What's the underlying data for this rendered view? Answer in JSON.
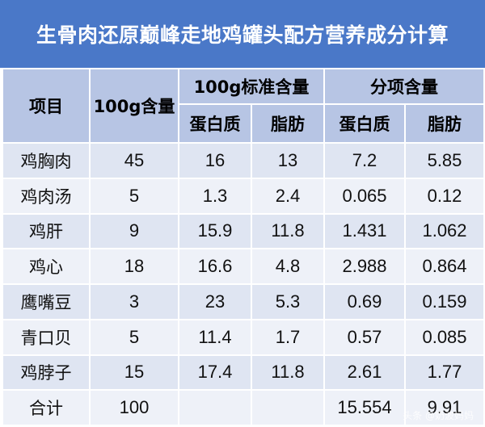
{
  "title": "生骨肉还原巅峰走地鸡罐头配方营养成分计算",
  "header": {
    "item": "项目",
    "amount": "100g含量",
    "standard_group": "100g标准含量",
    "portion_group": "分项含量",
    "protein": "蛋白质",
    "fat": "脂肪"
  },
  "rows": [
    {
      "name": "鸡胸肉",
      "amount": "45",
      "std_protein": "16",
      "std_fat": "13",
      "part_protein": "7.2",
      "part_fat": "5.85"
    },
    {
      "name": "鸡肉汤",
      "amount": "5",
      "std_protein": "1.3",
      "std_fat": "2.4",
      "part_protein": "0.065",
      "part_fat": "0.12"
    },
    {
      "name": "鸡肝",
      "amount": "9",
      "std_protein": "15.9",
      "std_fat": "11.8",
      "part_protein": "1.431",
      "part_fat": "1.062"
    },
    {
      "name": "鸡心",
      "amount": "18",
      "std_protein": "16.6",
      "std_fat": "4.8",
      "part_protein": "2.988",
      "part_fat": "0.864"
    },
    {
      "name": "鹰嘴豆",
      "amount": "3",
      "std_protein": "23",
      "std_fat": "5.3",
      "part_protein": "0.69",
      "part_fat": "0.159"
    },
    {
      "name": "青口贝",
      "amount": "5",
      "std_protein": "11.4",
      "std_fat": "1.7",
      "part_protein": "0.57",
      "part_fat": "0.085"
    },
    {
      "name": "鸡脖子",
      "amount": "15",
      "std_protein": "17.4",
      "std_fat": "11.8",
      "part_protein": "2.61",
      "part_fat": "1.77"
    }
  ],
  "total": {
    "label": "合计",
    "amount": "100",
    "part_protein": "15.554",
    "part_fat": "9.91"
  },
  "watermark": "头条 @奶波妈妈",
  "colors": {
    "title_bg": "#4a78c8",
    "header_bg": "#b7c5e4",
    "row_dark": "#dfe5f2",
    "row_light": "#eef1f8"
  }
}
